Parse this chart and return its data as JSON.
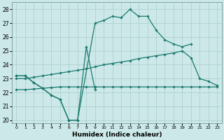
{
  "title": "",
  "xlabel": "Humidex (Indice chaleur)",
  "bg_color": "#cce8e8",
  "line_color": "#1a7a6e",
  "grid_color": "#aacccc",
  "xlim": [
    -0.5,
    23.5
  ],
  "ylim": [
    19.8,
    28.5
  ],
  "yticks": [
    20,
    21,
    22,
    23,
    24,
    25,
    26,
    27,
    28
  ],
  "xticks": [
    0,
    1,
    2,
    3,
    4,
    5,
    6,
    7,
    8,
    9,
    10,
    11,
    12,
    13,
    14,
    15,
    16,
    17,
    18,
    19,
    20,
    21,
    22,
    23
  ],
  "line1_x": [
    0,
    1,
    2,
    3,
    4,
    5,
    6,
    7,
    9,
    10,
    11,
    12,
    13,
    14,
    15,
    16,
    17,
    18,
    19,
    20
  ],
  "line1_y": [
    23.2,
    23.2,
    22.7,
    22.3,
    21.8,
    21.5,
    20.0,
    20.0,
    27.0,
    27.2,
    27.5,
    27.4,
    28.0,
    27.5,
    27.5,
    26.5,
    25.8,
    25.5,
    25.3,
    25.5
  ],
  "line2_x": [
    0,
    1,
    2,
    3,
    4,
    5,
    6,
    7,
    8,
    9
  ],
  "line2_y": [
    23.2,
    23.2,
    22.7,
    22.3,
    21.8,
    21.5,
    20.0,
    20.0,
    25.3,
    22.2
  ],
  "line3_x": [
    0,
    1,
    2,
    3,
    4,
    5,
    6,
    7,
    8,
    9,
    10,
    11,
    12,
    13,
    14,
    15,
    16,
    17,
    18,
    19,
    20,
    21,
    22,
    23
  ],
  "line3_y": [
    23.0,
    23.0,
    23.1,
    23.2,
    23.3,
    23.4,
    23.5,
    23.6,
    23.7,
    23.85,
    24.0,
    24.1,
    24.2,
    24.3,
    24.45,
    24.55,
    24.65,
    24.75,
    24.85,
    25.0,
    24.5,
    23.0,
    22.8,
    22.5
  ],
  "line4_x": [
    0,
    1,
    2,
    3,
    4,
    5,
    6,
    7,
    8,
    9,
    10,
    11,
    12,
    13,
    14,
    15,
    16,
    17,
    18,
    19,
    20,
    21,
    22,
    23
  ],
  "line4_y": [
    22.2,
    22.2,
    22.25,
    22.3,
    22.35,
    22.4,
    22.4,
    22.4,
    22.4,
    22.4,
    22.4,
    22.4,
    22.4,
    22.4,
    22.4,
    22.4,
    22.4,
    22.4,
    22.4,
    22.4,
    22.4,
    22.4,
    22.4,
    22.4
  ]
}
